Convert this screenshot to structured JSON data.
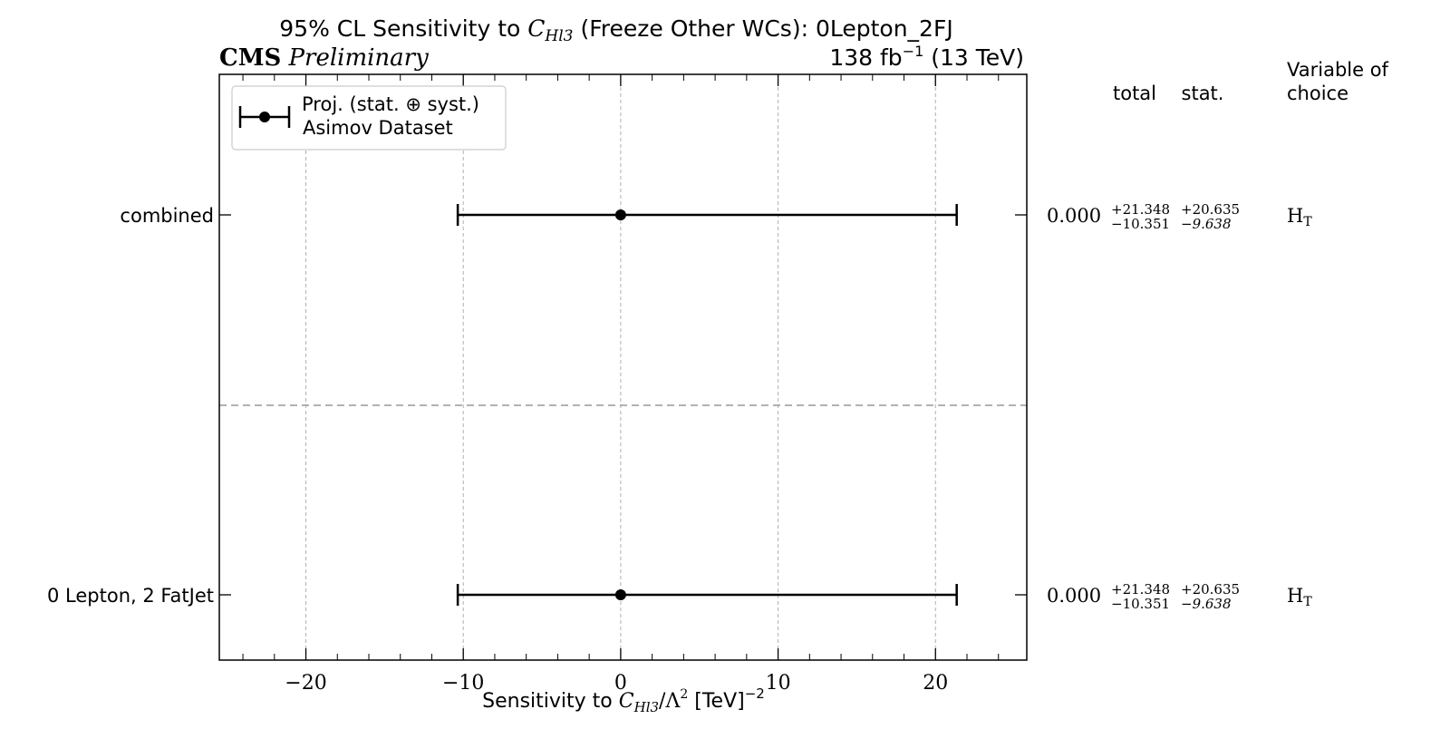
{
  "chart_data": {
    "type": "errorbar",
    "title_parts": {
      "prefix": "95% CL Sensitivity to ",
      "coefficient": "C",
      "coefficient_sub": "Hl3",
      "suffix": " (Freeze Other WCs): 0Lepton_2FJ"
    },
    "experiment_label": {
      "bold": "CMS",
      "italic": "Preliminary"
    },
    "luminosity": {
      "prefix": "138 fb",
      "exponent": "−1",
      "suffix": " (13 TeV)"
    },
    "xlabel_parts": {
      "prefix": "Sensitivity to ",
      "coefficient": "C",
      "coefficient_sub": "Hl3",
      "middle": "/Λ",
      "middle_sup": "2",
      "suffix": " [TeV]",
      "suffix_sup": "−2"
    },
    "xlim": [
      -25.5,
      25.8
    ],
    "xticks": [
      -20,
      -10,
      0,
      10,
      20
    ],
    "xtick_labels": [
      "−20",
      "−10",
      "0",
      "10",
      "20"
    ],
    "minor_xtick_step": 2,
    "grid": "vertical-dashed",
    "legend": {
      "placement": "top-left",
      "line1": "Proj. (stat. ⊕ syst.)",
      "line2": "Asimov Dataset"
    },
    "column_headers": {
      "total": "total",
      "stat": "stat.",
      "variable": "Variable of choice",
      "variable_line1": "Variable of",
      "variable_line2": "choice"
    },
    "rows": [
      {
        "label": "combined",
        "central": 0.0,
        "total_up": 21.348,
        "total_down": -10.351,
        "stat_up": 20.635,
        "stat_down": -9.638,
        "central_text": "0.000",
        "total_up_text": "+21.348",
        "total_down_text": "−10.351",
        "stat_up_text": "+20.635",
        "stat_down_text": "−9.638",
        "variable": "H",
        "variable_sub": "T"
      },
      {
        "label": "0 Lepton, 2 FatJet",
        "central": 0.0,
        "total_up": 21.348,
        "total_down": -10.351,
        "stat_up": 20.635,
        "stat_down": -9.638,
        "central_text": "0.000",
        "total_up_text": "+21.348",
        "total_down_text": "−10.351",
        "stat_up_text": "+20.635",
        "stat_down_text": "−9.638",
        "variable": "H",
        "variable_sub": "T"
      }
    ],
    "colors": {
      "marker": "#000000",
      "grid": "#b0b0b0",
      "separator": "#999999",
      "axis": "#000000"
    }
  }
}
